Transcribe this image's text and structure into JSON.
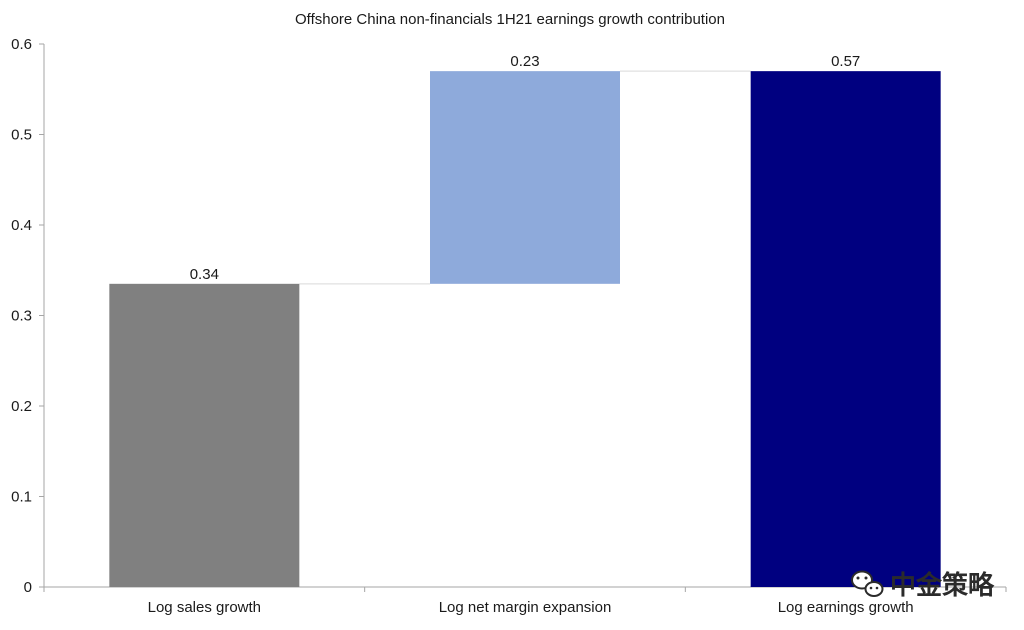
{
  "chart_data": {
    "type": "bar",
    "subtype": "waterfall",
    "title": "Offshore China non-financials 1H21 earnings growth contribution",
    "xlabel": "",
    "ylabel": "",
    "ylim": [
      0,
      0.6
    ],
    "yticks": [
      "0",
      "0.1",
      "0.2",
      "0.3",
      "0.4",
      "0.5",
      "0.6"
    ],
    "categories": [
      "Log sales growth",
      "Log net margin expansion",
      "Log earnings growth"
    ],
    "series": [
      {
        "values": [
          0.335,
          0.235,
          0.57
        ],
        "bases": [
          0,
          0.335,
          0
        ],
        "labels": [
          "0.34",
          "0.23",
          "0.57"
        ],
        "colors": [
          "#808080",
          "#8eaadb",
          "#000080"
        ]
      }
    ],
    "connector_color": "#d9d9d9",
    "grid": false,
    "legend": "none"
  },
  "watermark": {
    "text": "中金策略",
    "icon": "wechat-icon"
  }
}
